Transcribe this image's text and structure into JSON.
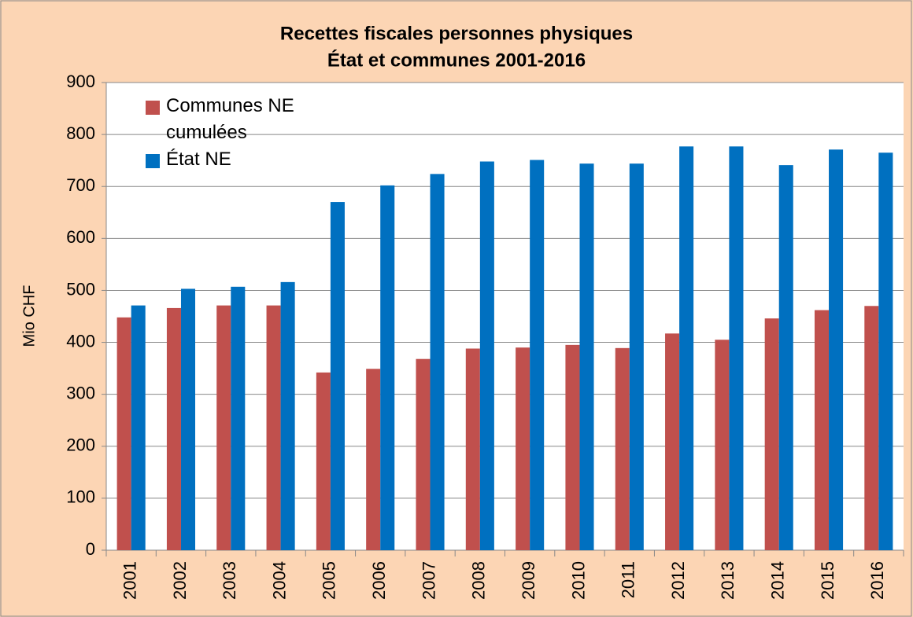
{
  "chart_data": {
    "type": "bar",
    "title": [
      "Recettes fiscales personnes physiques",
      "État et communes 2001-2016"
    ],
    "y_label": "Mio CHF",
    "categories": [
      "2001",
      "2002",
      "2003",
      "2004",
      "2005",
      "2006",
      "2007",
      "2008",
      "2009",
      "2010",
      "2011",
      "2012",
      "2013",
      "2014",
      "2015",
      "2016"
    ],
    "series": [
      {
        "name": "Communes NE cumulées",
        "color": "#c0504d",
        "values": [
          448,
          466,
          471,
          471,
          342,
          349,
          368,
          388,
          390,
          395,
          389,
          417,
          405,
          446,
          462,
          470
        ]
      },
      {
        "name": "État NE",
        "color": "#0070c0",
        "values": [
          471,
          503,
          507,
          516,
          670,
          702,
          724,
          748,
          751,
          744,
          744,
          777,
          777,
          741,
          771,
          765
        ]
      }
    ],
    "ylim": [
      0,
      900
    ],
    "yticks": [
      0,
      100,
      200,
      300,
      400,
      500,
      600,
      700,
      800,
      900
    ],
    "grid": true,
    "legend": "top-left"
  }
}
